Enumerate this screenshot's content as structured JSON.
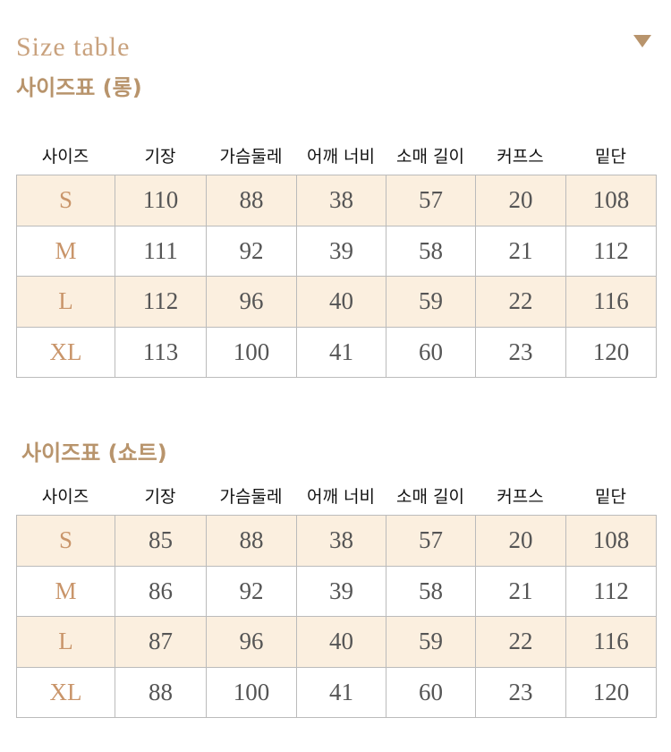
{
  "header": {
    "title": "Size table",
    "subtitle": "사이즈표 (롱)"
  },
  "tables": [
    {
      "columns": [
        "사이즈",
        "기장",
        "가슴둘레",
        "어깨 너비",
        "소매 길이",
        "커프스",
        "밑단"
      ],
      "rows": [
        [
          "S",
          110,
          88,
          38,
          57,
          20,
          108
        ],
        [
          "M",
          111,
          92,
          39,
          58,
          21,
          112
        ],
        [
          "L",
          112,
          96,
          40,
          59,
          22,
          116
        ],
        [
          "XL",
          113,
          100,
          41,
          60,
          23,
          120
        ]
      ]
    },
    {
      "title": "사이즈표 (쇼트)",
      "columns": [
        "사이즈",
        "기장",
        "가슴둘레",
        "어깨 너비",
        "소매 길이",
        "커프스",
        "밑단"
      ],
      "rows": [
        [
          "S",
          85,
          88,
          38,
          57,
          20,
          108
        ],
        [
          "M",
          86,
          92,
          39,
          58,
          21,
          112
        ],
        [
          "L",
          87,
          96,
          40,
          59,
          22,
          116
        ],
        [
          "XL",
          88,
          100,
          41,
          60,
          23,
          120
        ]
      ]
    }
  ]
}
